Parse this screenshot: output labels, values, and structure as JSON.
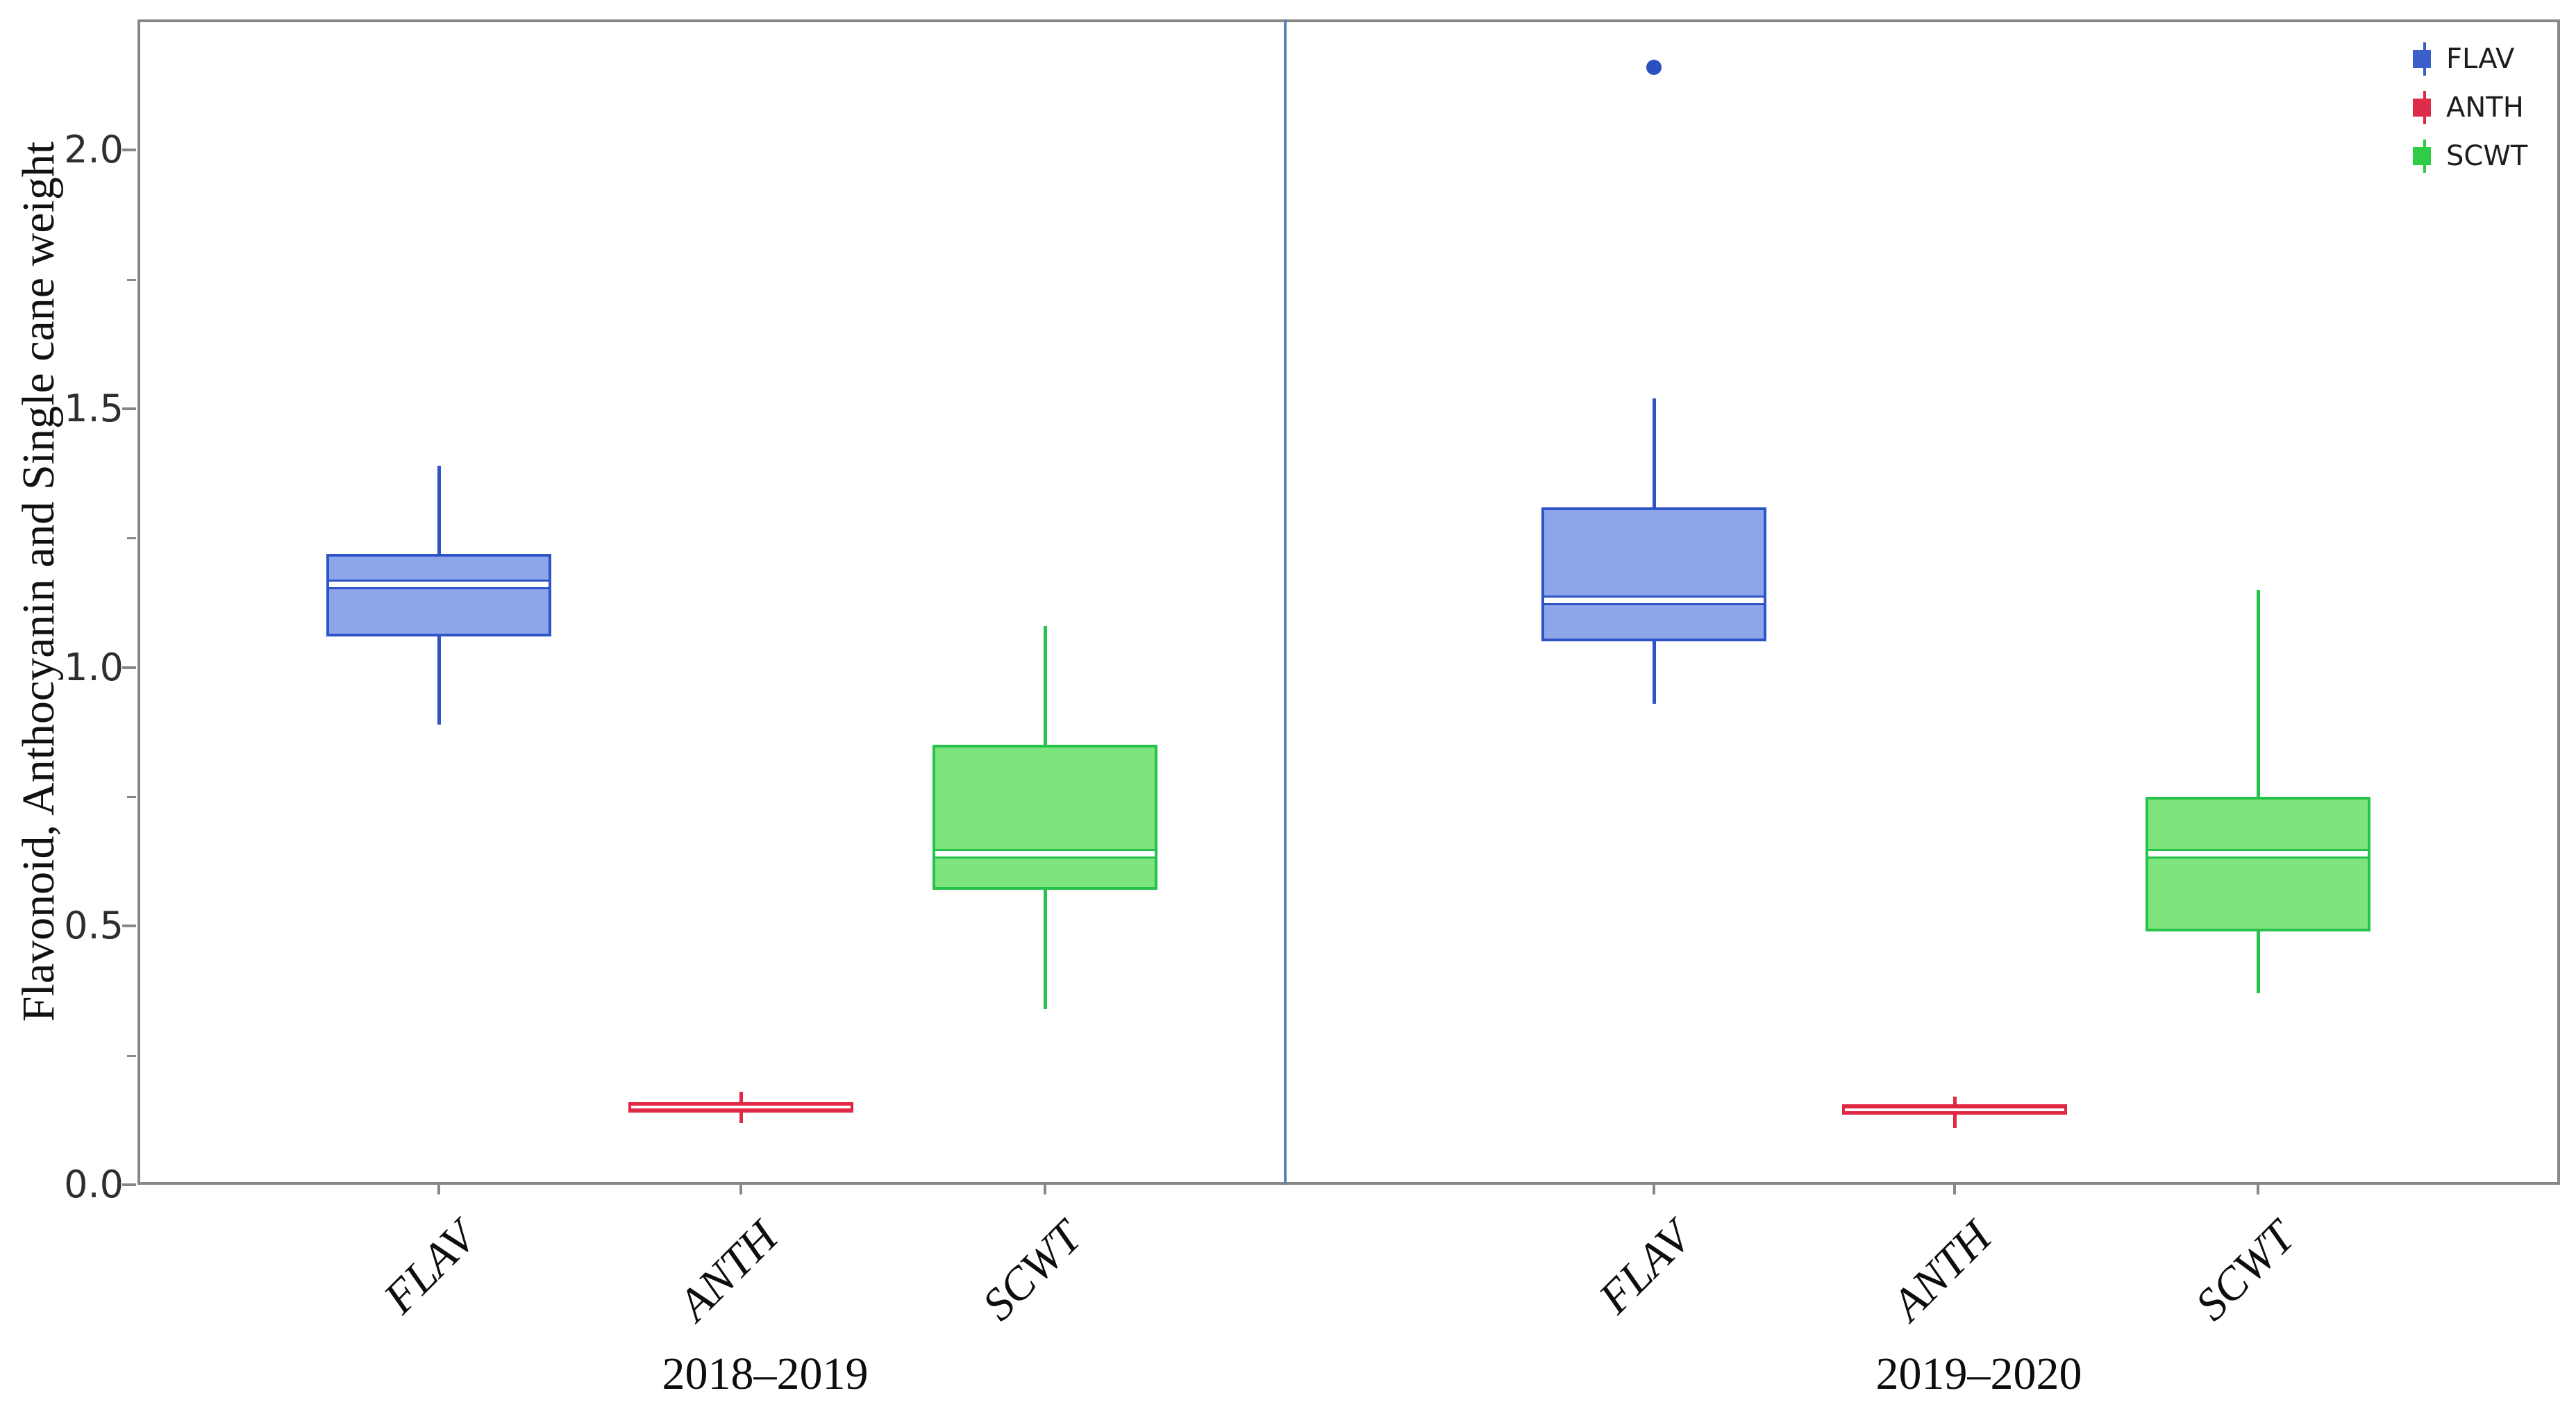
{
  "chart_data": {
    "type": "box",
    "title": "",
    "xlabel": "",
    "ylabel": "Flavonoid, Anthocyanin and Single cane weight",
    "ylim": [
      0,
      2.25
    ],
    "y_major_ticks": [
      0.0,
      0.5,
      1.0,
      1.5,
      2.0
    ],
    "y_major_tick_labels": [
      "0.0",
      "0.5",
      "1.0",
      "1.5",
      "2.0"
    ],
    "y_minor_ticks": [
      0.25,
      0.75,
      1.25,
      1.75
    ],
    "grid": false,
    "legend": {
      "position": "top-right",
      "entries": [
        {
          "label": "FLAV",
          "color": "#3a5fc8"
        },
        {
          "label": "ANTH",
          "color": "#dd2b49"
        },
        {
          "label": "SCWT",
          "color": "#2ecc47"
        }
      ]
    },
    "series_styles": {
      "FLAV": {
        "edge": "#2f54c8",
        "fill": "#8da6ea"
      },
      "ANTH": {
        "edge": "#e02743",
        "fill": "#f6bcc8"
      },
      "SCWT": {
        "edge": "#27c24b",
        "fill": "#7ee47e"
      }
    },
    "groups": [
      {
        "label": "2018–2019",
        "boxes": [
          {
            "category": "FLAV",
            "series": "FLAV",
            "whisker_low": 0.89,
            "q1": 1.06,
            "median": 1.16,
            "q3": 1.22,
            "whisker_high": 1.39,
            "outliers": []
          },
          {
            "category": "ANTH",
            "series": "ANTH",
            "whisker_low": 0.12,
            "q1": 0.14,
            "median": 0.15,
            "q3": 0.16,
            "whisker_high": 0.18,
            "outliers": []
          },
          {
            "category": "SCWT",
            "series": "SCWT",
            "whisker_low": 0.34,
            "q1": 0.57,
            "median": 0.64,
            "q3": 0.85,
            "whisker_high": 1.08,
            "outliers": []
          }
        ]
      },
      {
        "label": "2019–2020",
        "boxes": [
          {
            "category": "FLAV",
            "series": "FLAV",
            "whisker_low": 0.93,
            "q1": 1.05,
            "median": 1.13,
            "q3": 1.31,
            "whisker_high": 1.52,
            "outliers": [
              2.16
            ]
          },
          {
            "category": "ANTH",
            "series": "ANTH",
            "whisker_low": 0.11,
            "q1": 0.135,
            "median": 0.145,
            "q3": 0.155,
            "whisker_high": 0.17,
            "outliers": []
          },
          {
            "category": "SCWT",
            "series": "SCWT",
            "whisker_low": 0.37,
            "q1": 0.49,
            "median": 0.64,
            "q3": 0.75,
            "whisker_high": 1.15,
            "outliers": []
          }
        ]
      }
    ],
    "frame_color": "#878787",
    "divider_color": "#5b83b5",
    "outlier_color": "#2b50c0"
  }
}
